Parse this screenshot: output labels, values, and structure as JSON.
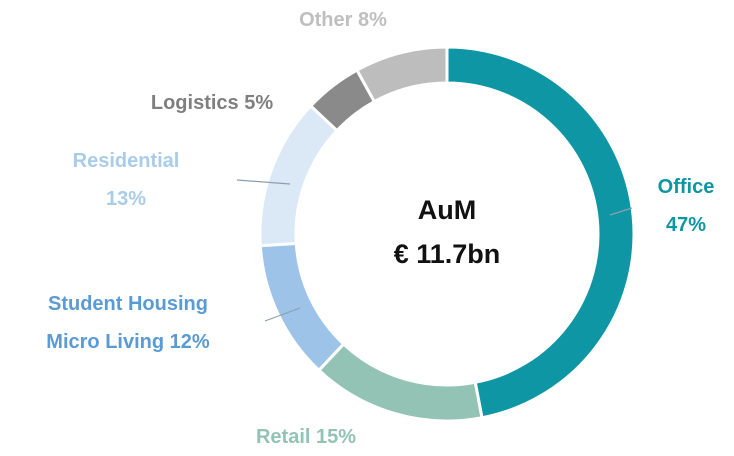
{
  "chart_data": {
    "type": "donut",
    "center_label": [
      "AuM",
      "€ 11.7bn"
    ],
    "categories": [
      "Office",
      "Retail",
      "Student Housing Micro Living",
      "Residential",
      "Logistics",
      "Other"
    ],
    "values": [
      47,
      15,
      12,
      13,
      5,
      8
    ],
    "value_labels": [
      "47%",
      "15%",
      "12%",
      "13%",
      "5%",
      "8%"
    ],
    "colors": [
      "#0e96a4",
      "#93c3b5",
      "#9dc3e8",
      "#dbe8f6",
      "#8a8a8a",
      "#bdbdbd"
    ],
    "label_colors": [
      "#0e96a4",
      "#93c3b5",
      "#5b9bd5",
      "#a9cce8",
      "#7f7f7f",
      "#bfbfbf"
    ]
  }
}
